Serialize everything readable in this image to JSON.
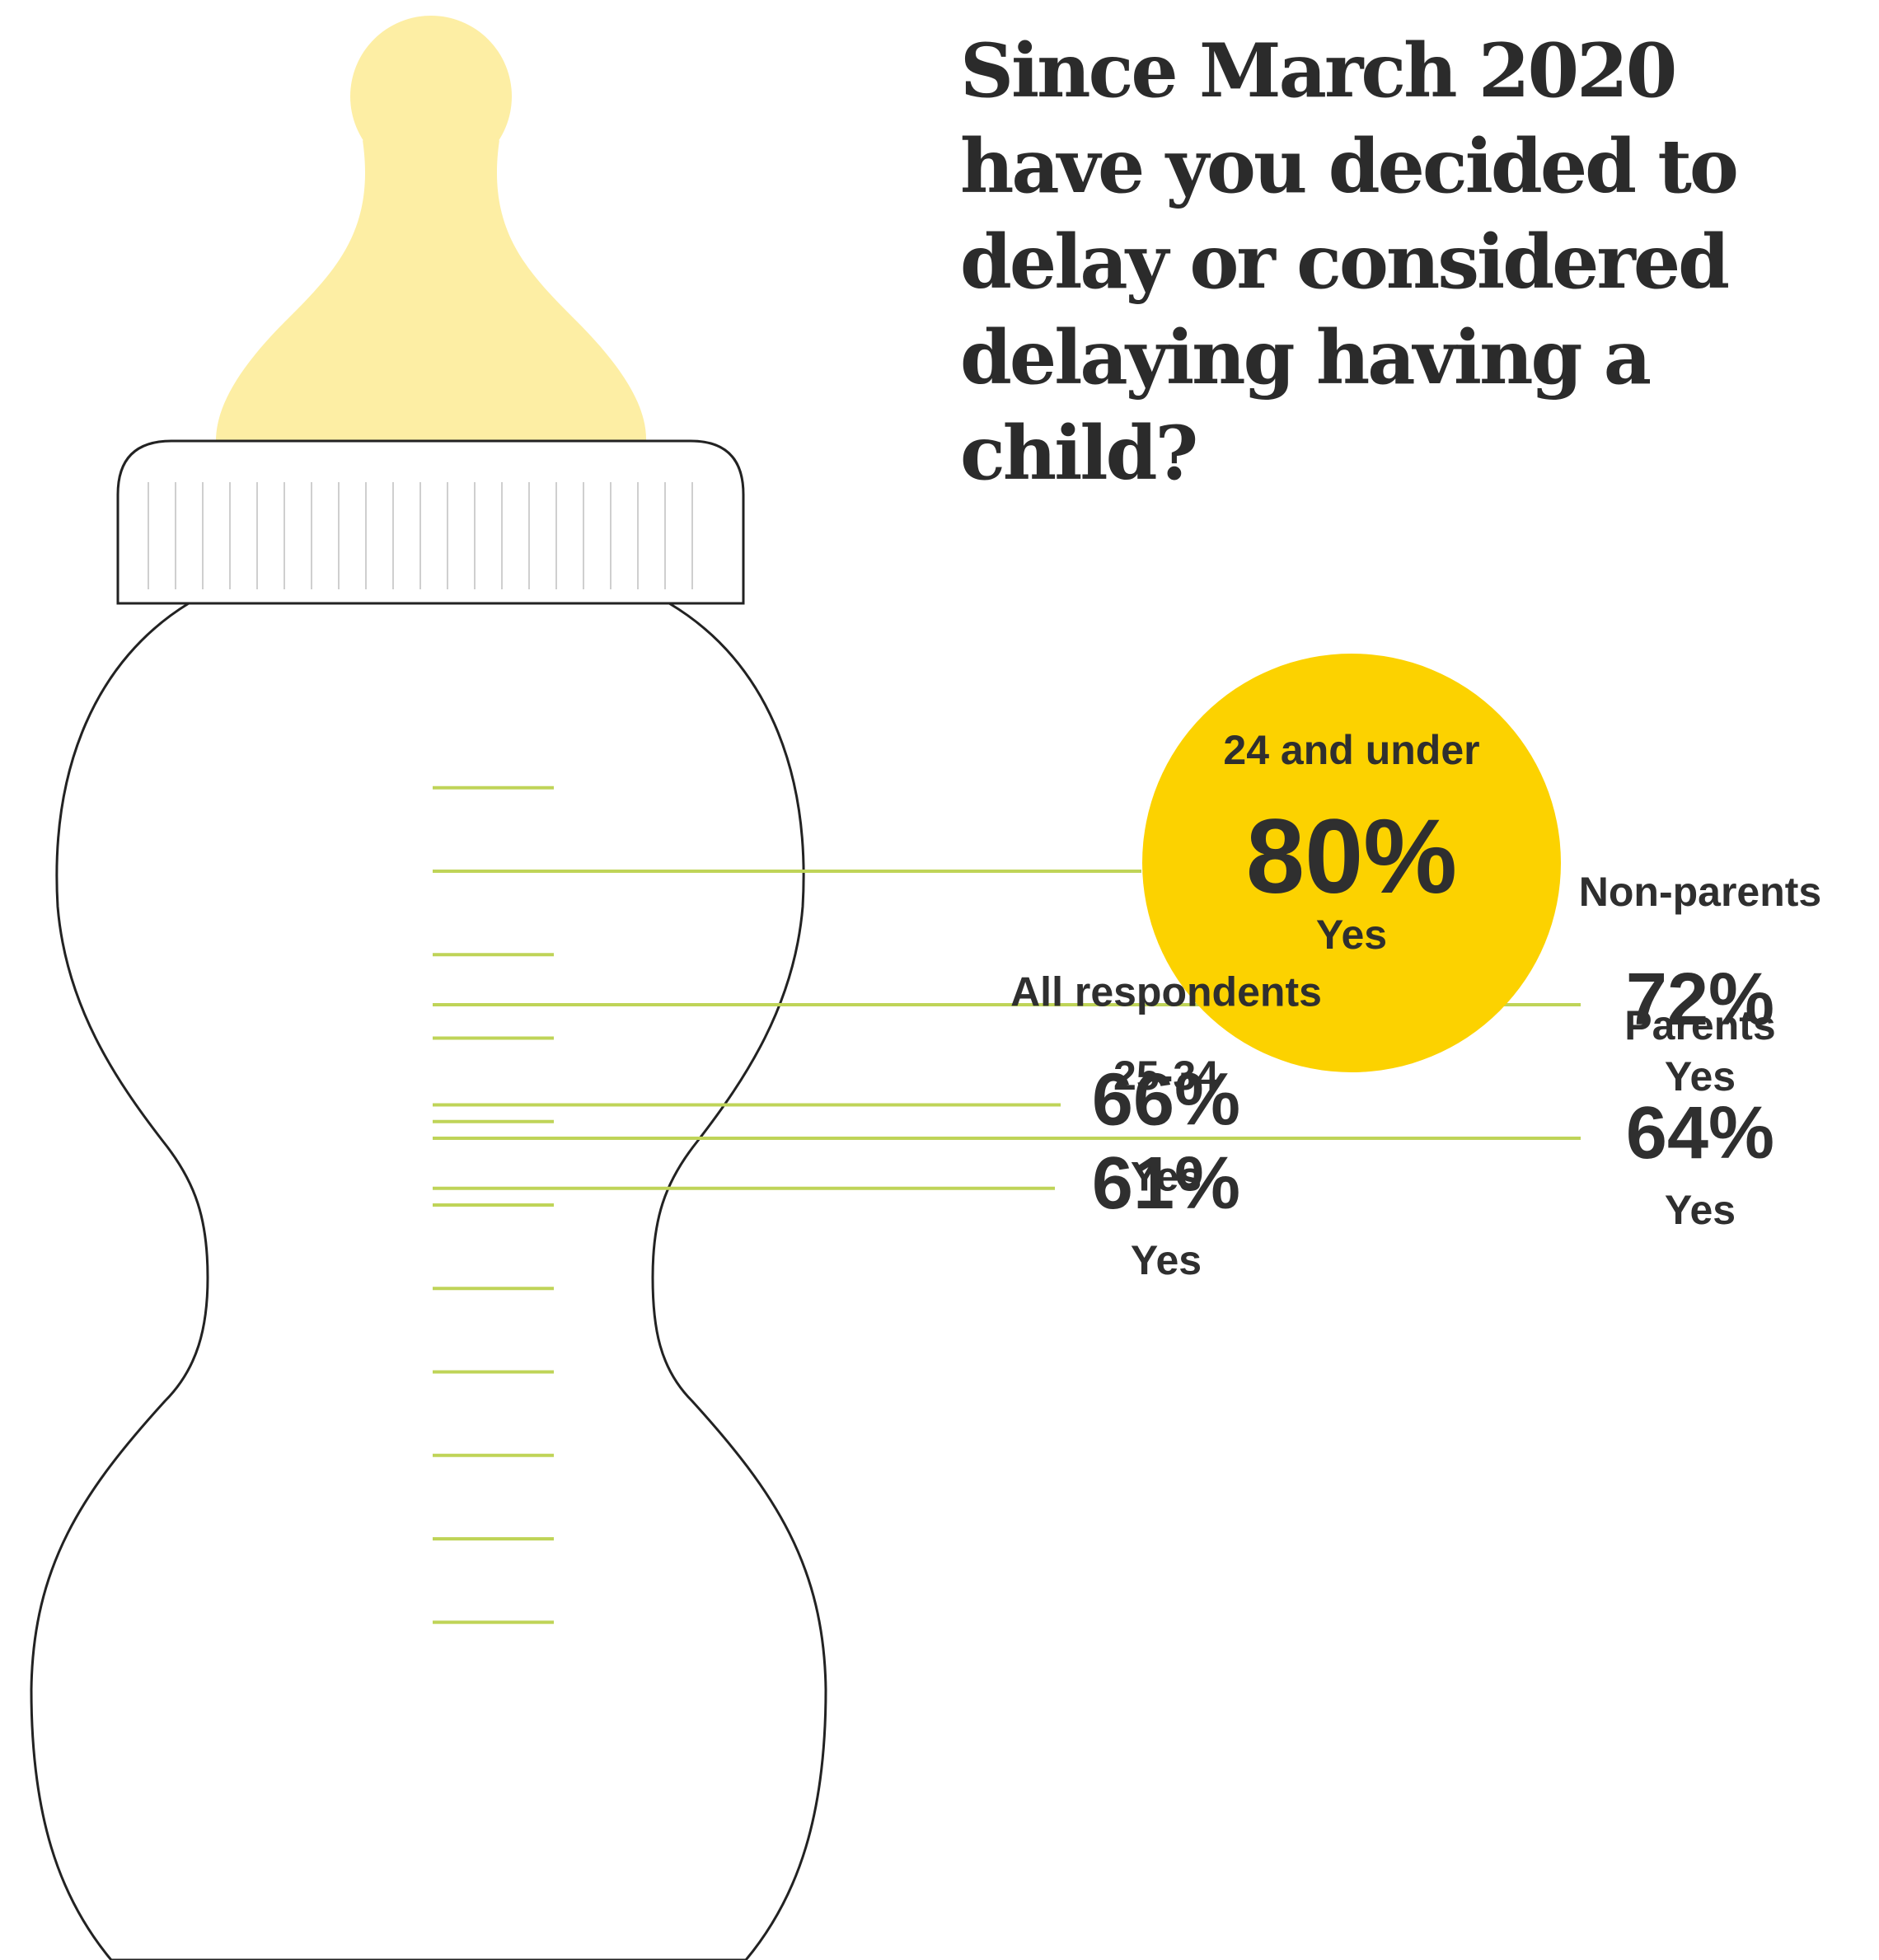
{
  "title": "Since March 2020 have you decided to delay or considered delaying having a child?",
  "chart_data": {
    "type": "bar",
    "value_suffix": "%",
    "response_label": "Yes",
    "categories": [
      "24 and under",
      "Non-parents",
      "All respondents",
      "Parents",
      "25-34"
    ],
    "values": [
      80,
      72,
      66,
      64,
      61
    ],
    "highlight": "24 and under",
    "colors": {
      "nipple": "#fdeea4",
      "highlight": "#fcd200",
      "gauge": "#bfd458",
      "outline": "#222222",
      "text": "#2f2f2f"
    }
  }
}
